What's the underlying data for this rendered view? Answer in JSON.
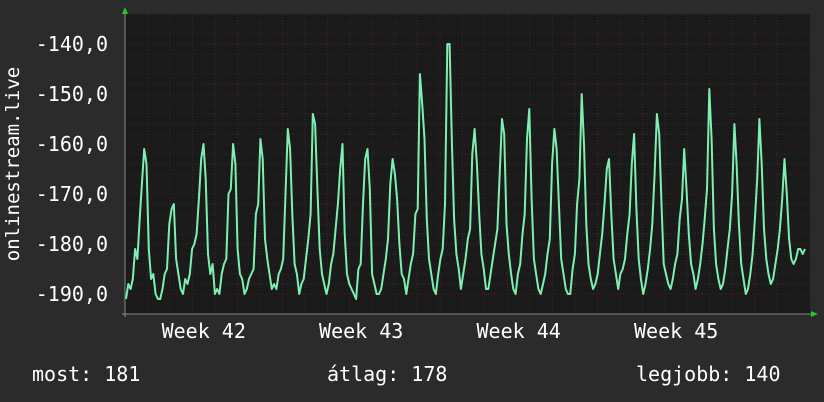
{
  "chart_data": {
    "type": "line",
    "title": "",
    "ylabel": "onlinestream.live",
    "xlabel": "",
    "y_ticks": [
      "-140,0",
      "-150,0",
      "-160,0",
      "-170,0",
      "-180,0",
      "-190,0"
    ],
    "ylim": [
      -194,
      -134
    ],
    "x_ticks": [
      {
        "label": "Week 42",
        "week_pos": 0.5
      },
      {
        "label": "Week 43",
        "week_pos": 1.5
      },
      {
        "label": "Week 44",
        "week_pos": 2.5
      },
      {
        "label": "Week 45",
        "week_pos": 3.5
      }
    ],
    "x_range_weeks": [
      0,
      4.35
    ],
    "grid": true,
    "colors": {
      "line": "#7cf0b0",
      "background": "#1a1a1a",
      "grid": "#5a1a1a",
      "axis": "#8a8a8a",
      "arrow": "#22cc22"
    },
    "series": [
      {
        "values": [
          -191,
          -188,
          -189,
          -187,
          -181,
          -183,
          -175,
          -168,
          -161,
          -164,
          -181,
          -187,
          -186,
          -190,
          -191,
          -191,
          -189,
          -186,
          -185,
          -176,
          -173,
          -172,
          -183,
          -186,
          -189,
          -190,
          -187,
          -188,
          -186,
          -181,
          -180,
          -178,
          -171,
          -163,
          -160,
          -167,
          -182,
          -186,
          -184,
          -190,
          -189,
          -190,
          -186,
          -184,
          -183,
          -170,
          -169,
          -160,
          -164,
          -181,
          -186,
          -187,
          -190,
          -189,
          -187,
          -186,
          -185,
          -174,
          -172,
          -159,
          -163,
          -179,
          -183,
          -186,
          -189,
          -188,
          -189,
          -186,
          -185,
          -183,
          -170,
          -157,
          -161,
          -174,
          -184,
          -186,
          -190,
          -188,
          -187,
          -183,
          -179,
          -174,
          -154,
          -156,
          -169,
          -181,
          -186,
          -188,
          -190,
          -188,
          -184,
          -182,
          -177,
          -172,
          -165,
          -160,
          -178,
          -186,
          -188,
          -189,
          -190,
          -191,
          -185,
          -184,
          -172,
          -163,
          -161,
          -169,
          -186,
          -188,
          -190,
          -190,
          -189,
          -186,
          -183,
          -179,
          -168,
          -163,
          -166,
          -171,
          -180,
          -186,
          -187,
          -190,
          -187,
          -184,
          -182,
          -174,
          -173,
          -146,
          -152,
          -159,
          -175,
          -183,
          -186,
          -189,
          -190,
          -186,
          -183,
          -181,
          -172,
          -140,
          -140,
          -159,
          -175,
          -182,
          -185,
          -189,
          -186,
          -183,
          -179,
          -177,
          -162,
          -157,
          -164,
          -174,
          -182,
          -185,
          -189,
          -189,
          -186,
          -183,
          -180,
          -177,
          -166,
          -155,
          -158,
          -176,
          -182,
          -186,
          -189,
          -190,
          -186,
          -184,
          -178,
          -174,
          -159,
          -153,
          -171,
          -183,
          -186,
          -189,
          -190,
          -188,
          -186,
          -182,
          -179,
          -164,
          -157,
          -161,
          -172,
          -183,
          -186,
          -189,
          -190,
          -190,
          -185,
          -182,
          -172,
          -167,
          -150,
          -160,
          -176,
          -184,
          -187,
          -189,
          -188,
          -186,
          -182,
          -178,
          -172,
          -165,
          -163,
          -174,
          -183,
          -186,
          -189,
          -186,
          -185,
          -183,
          -178,
          -174,
          -164,
          -158,
          -173,
          -183,
          -187,
          -190,
          -188,
          -185,
          -181,
          -176,
          -166,
          -154,
          -158,
          -172,
          -184,
          -186,
          -188,
          -189,
          -187,
          -184,
          -182,
          -175,
          -171,
          -161,
          -169,
          -178,
          -184,
          -186,
          -189,
          -187,
          -184,
          -180,
          -175,
          -169,
          -149,
          -159,
          -177,
          -184,
          -187,
          -189,
          -188,
          -185,
          -181,
          -177,
          -170,
          -156,
          -164,
          -176,
          -184,
          -187,
          -190,
          -189,
          -186,
          -182,
          -175,
          -167,
          -155,
          -164,
          -177,
          -183,
          -186,
          -188,
          -187,
          -184,
          -181,
          -177,
          -171,
          -163,
          -170,
          -179,
          -183,
          -184,
          -183,
          -181,
          -181,
          -182,
          -181
        ]
      }
    ]
  },
  "stats": {
    "current": "most: 181",
    "average": "átlag: 178",
    "best": "legjobb: 140"
  }
}
